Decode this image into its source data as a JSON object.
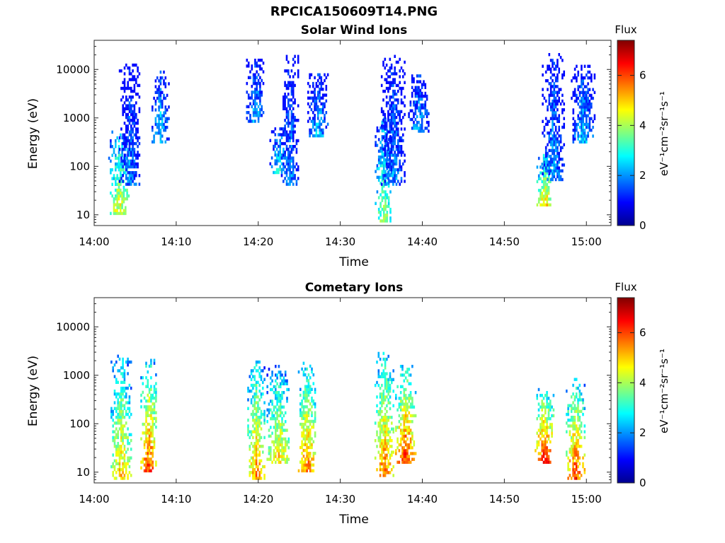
{
  "figure_title": "RPCICA150609T14.PNG",
  "chart_data": [
    {
      "type": "heatmap",
      "title": "Solar Wind Ions",
      "xlabel": "Time",
      "ylabel": "Energy (eV)",
      "yscale": "log",
      "ylim": [
        6,
        40000
      ],
      "xlim": [
        "14:00",
        "15:03"
      ],
      "x_ticks": [
        "14:00",
        "14:10",
        "14:20",
        "14:30",
        "14:40",
        "14:50",
        "15:00"
      ],
      "y_ticks": [
        "10",
        "100",
        "1000",
        "10000"
      ],
      "colorbar": {
        "title": "Flux",
        "label": "eV⁻¹cm⁻²sr⁻¹s⁻¹",
        "range": [
          0,
          7.4
        ],
        "ticks": [
          "0",
          "2",
          "4",
          "6"
        ],
        "colormap": "jet"
      },
      "grid": false,
      "bursts": [
        {
          "center_min": 3.0,
          "value": 4.6,
          "e_low": 10,
          "e_high": 500
        },
        {
          "center_min": 4.3,
          "value": 2.0,
          "e_low": 40,
          "e_high": 12000
        },
        {
          "center_min": 8.0,
          "value": 2.7,
          "e_low": 300,
          "e_high": 9000
        },
        {
          "center_min": 19.6,
          "value": 2.5,
          "e_low": 800,
          "e_high": 15000
        },
        {
          "center_min": 22.5,
          "value": 3.0,
          "e_low": 70,
          "e_high": 600
        },
        {
          "center_min": 23.8,
          "value": 2.1,
          "e_low": 40,
          "e_high": 20000
        },
        {
          "center_min": 27.2,
          "value": 2.5,
          "e_low": 400,
          "e_high": 8000
        },
        {
          "center_min": 35.2,
          "value": 4.0,
          "e_low": 7,
          "e_high": 900
        },
        {
          "center_min": 36.4,
          "value": 2.1,
          "e_low": 40,
          "e_high": 18000
        },
        {
          "center_min": 39.5,
          "value": 2.4,
          "e_low": 500,
          "e_high": 9000
        },
        {
          "center_min": 54.9,
          "value": 5.0,
          "e_low": 15,
          "e_high": 200
        },
        {
          "center_min": 55.9,
          "value": 2.2,
          "e_low": 50,
          "e_high": 20000
        },
        {
          "center_min": 59.5,
          "value": 2.5,
          "e_low": 300,
          "e_high": 12000
        }
      ]
    },
    {
      "type": "heatmap",
      "title": "Cometary Ions",
      "xlabel": "Time",
      "ylabel": "Energy (eV)",
      "yscale": "log",
      "ylim": [
        6,
        40000
      ],
      "xlim": [
        "14:00",
        "15:03"
      ],
      "x_ticks": [
        "14:00",
        "14:10",
        "14:20",
        "14:30",
        "14:40",
        "14:50",
        "15:00"
      ],
      "y_ticks": [
        "10",
        "100",
        "1000",
        "10000"
      ],
      "colorbar": {
        "title": "Flux",
        "label": "eV⁻¹cm⁻²sr⁻¹s⁻¹",
        "range": [
          0,
          7.4
        ],
        "ticks": [
          "0",
          "2",
          "4",
          "6"
        ],
        "colormap": "jet"
      },
      "grid": false,
      "bursts": [
        {
          "center_min": 3.2,
          "value": 5.2,
          "e_low": 7,
          "e_high": 2500
        },
        {
          "center_min": 6.6,
          "value": 6.2,
          "e_low": 10,
          "e_high": 2000
        },
        {
          "center_min": 19.7,
          "value": 5.6,
          "e_low": 7,
          "e_high": 2000
        },
        {
          "center_min": 22.4,
          "value": 5.0,
          "e_low": 15,
          "e_high": 1500
        },
        {
          "center_min": 25.9,
          "value": 5.8,
          "e_low": 10,
          "e_high": 1800
        },
        {
          "center_min": 35.3,
          "value": 5.8,
          "e_low": 8,
          "e_high": 3000
        },
        {
          "center_min": 37.9,
          "value": 6.4,
          "e_low": 15,
          "e_high": 1500
        },
        {
          "center_min": 54.8,
          "value": 6.6,
          "e_low": 15,
          "e_high": 500
        },
        {
          "center_min": 58.6,
          "value": 6.2,
          "e_low": 7,
          "e_high": 800
        }
      ]
    }
  ]
}
